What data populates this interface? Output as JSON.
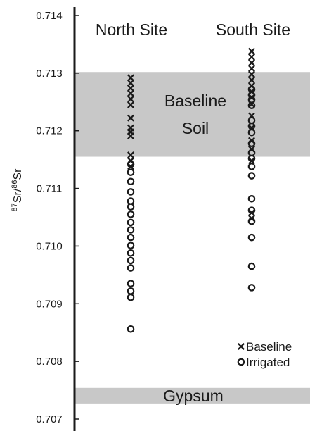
{
  "chart_data": {
    "type": "scatter",
    "ylabel": "87Sr/86Sr",
    "ylabel_parts": {
      "sup1": "87",
      "base1": "Sr/",
      "sup2": "86",
      "base2": "Sr"
    },
    "ylim": [
      0.7068,
      0.7142
    ],
    "yticks": [
      "0.714",
      "0.713",
      "0.712",
      "0.711",
      "0.710",
      "0.709",
      "0.708",
      "0.707"
    ],
    "grid": false,
    "legend_position": "bottom-right",
    "categories": [
      "North Site",
      "South Site"
    ],
    "bands": [
      {
        "label_lines": [
          "Baseline",
          "Soil"
        ],
        "y0": 0.71155,
        "y1": 0.71302,
        "color": "#c8c8c8"
      },
      {
        "label_lines": [
          "Gypsum"
        ],
        "y0": 0.70727,
        "y1": 0.70754,
        "color": "#c8c8c8"
      }
    ],
    "series": [
      {
        "name": "Baseline",
        "marker": "x",
        "points": [
          {
            "site": "North Site",
            "y": [
              0.71292,
              0.71283,
              0.71274,
              0.71265,
              0.71255,
              0.71245,
              0.71222,
              0.71205,
              0.71198,
              0.71191,
              0.71158,
              0.71148,
              0.71138
            ]
          },
          {
            "site": "South Site",
            "y": [
              0.71338,
              0.71328,
              0.71318,
              0.71308,
              0.71298,
              0.71288,
              0.71278,
              0.71268,
              0.71258,
              0.71246,
              0.71226,
              0.71205,
              0.71183,
              0.71168,
              0.71148,
              0.71058,
              0.71048
            ]
          }
        ]
      },
      {
        "name": "Irrigated",
        "marker": "o",
        "points": [
          {
            "site": "North Site",
            "y": [
              0.71142,
              0.71128,
              0.71112,
              0.71094,
              0.71078,
              0.71068,
              0.71055,
              0.71041,
              0.71028,
              0.71015,
              0.71001,
              0.70988,
              0.70975,
              0.70962,
              0.70935,
              0.70922,
              0.70911,
              0.70856
            ]
          },
          {
            "site": "South Site",
            "y": [
              0.71272,
              0.71262,
              0.71254,
              0.71244,
              0.71218,
              0.71208,
              0.71197,
              0.71178,
              0.71162,
              0.71152,
              0.71138,
              0.71122,
              0.71082,
              0.71062,
              0.71043,
              0.71015,
              0.70965,
              0.70928
            ]
          }
        ]
      }
    ]
  }
}
